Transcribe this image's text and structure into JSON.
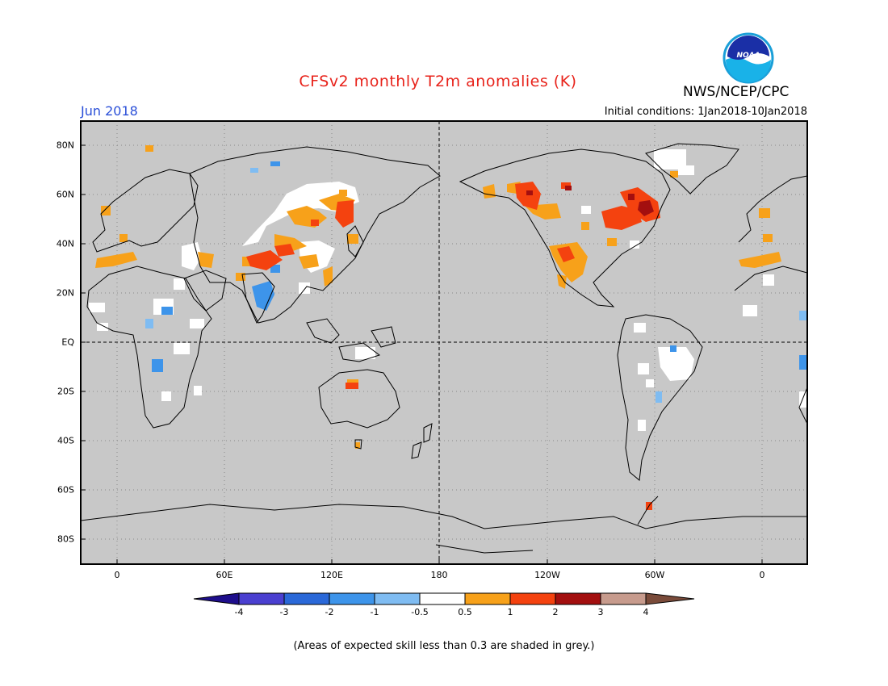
{
  "title": "CFSv2 monthly T2m anomalies (K)",
  "agency": "NWS/NCEP/CPC",
  "logo_text": "NOAA",
  "month_label": "Jun 2018",
  "initial_conditions": "Initial conditions: 1Jan2018-10Jan2018",
  "map": {
    "background_color": "#c8c8c8",
    "reference_lines": [
      "equator",
      "dateline-180"
    ],
    "lon_labels": [
      "0",
      "60E",
      "120E",
      "180",
      "120W",
      "60W",
      "0"
    ],
    "lat_labels": [
      "80N",
      "60N",
      "40N",
      "20N",
      "EQ",
      "20S",
      "40S",
      "60S",
      "80S"
    ]
  },
  "colorbar": {
    "colors": [
      "#1e0e8c",
      "#4a3fd0",
      "#2a68d8",
      "#3d94ea",
      "#7fbcf2",
      "#ffffff",
      "#f7a11a",
      "#f4420f",
      "#a30f0f",
      "#c79b8d",
      "#7a4b3a"
    ],
    "tick_labels": [
      "-4",
      "-3",
      "-2",
      "-1",
      "-0.5",
      "0.5",
      "1",
      "2",
      "3",
      "4"
    ]
  },
  "footnote": "(Areas of expected skill less than 0.3 are shaded in grey.)"
}
